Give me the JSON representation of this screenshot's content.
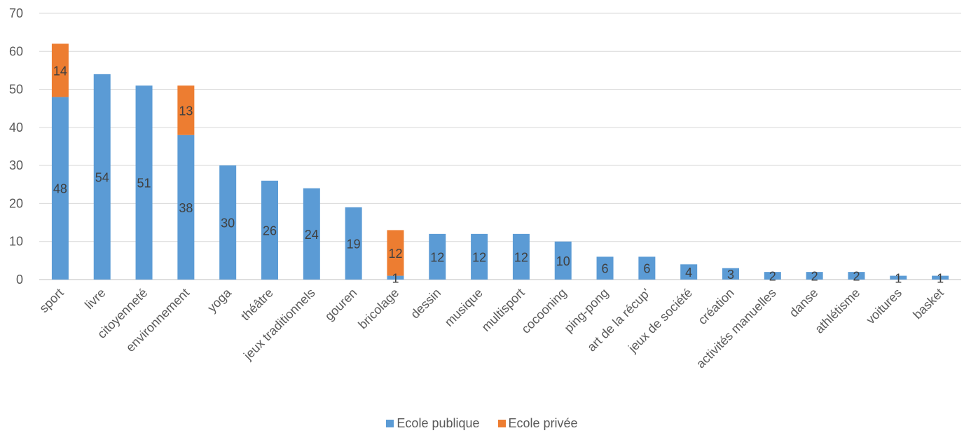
{
  "chart_data": {
    "type": "bar",
    "stacked": true,
    "categories": [
      "sport",
      "livre",
      "citoyenneté",
      "environnement",
      "yoga",
      "théâtre",
      "jeux traditionnels",
      "gouren",
      "bricolage",
      "dessin",
      "musique",
      "multisport",
      "cocooning",
      "ping-pong",
      "art de la récup'",
      "jeux de société",
      "création",
      "activités manuelles",
      "danse",
      "athlétisme",
      "voitures",
      "basket"
    ],
    "series": [
      {
        "name": "Ecole publique",
        "color": "#5b9bd5",
        "values": [
          48,
          54,
          51,
          38,
          30,
          26,
          24,
          19,
          1,
          12,
          12,
          12,
          10,
          6,
          6,
          4,
          3,
          2,
          2,
          2,
          1,
          1
        ]
      },
      {
        "name": "Ecole privée",
        "color": "#ed7d31",
        "values": [
          14,
          null,
          null,
          13,
          null,
          null,
          null,
          null,
          12,
          null,
          null,
          null,
          null,
          null,
          null,
          null,
          null,
          null,
          null,
          null,
          null,
          null
        ]
      }
    ],
    "ylim": [
      0,
      70
    ],
    "yticks": [
      0,
      10,
      20,
      30,
      40,
      50,
      60,
      70
    ],
    "grid": true,
    "legend_position": "bottom"
  }
}
